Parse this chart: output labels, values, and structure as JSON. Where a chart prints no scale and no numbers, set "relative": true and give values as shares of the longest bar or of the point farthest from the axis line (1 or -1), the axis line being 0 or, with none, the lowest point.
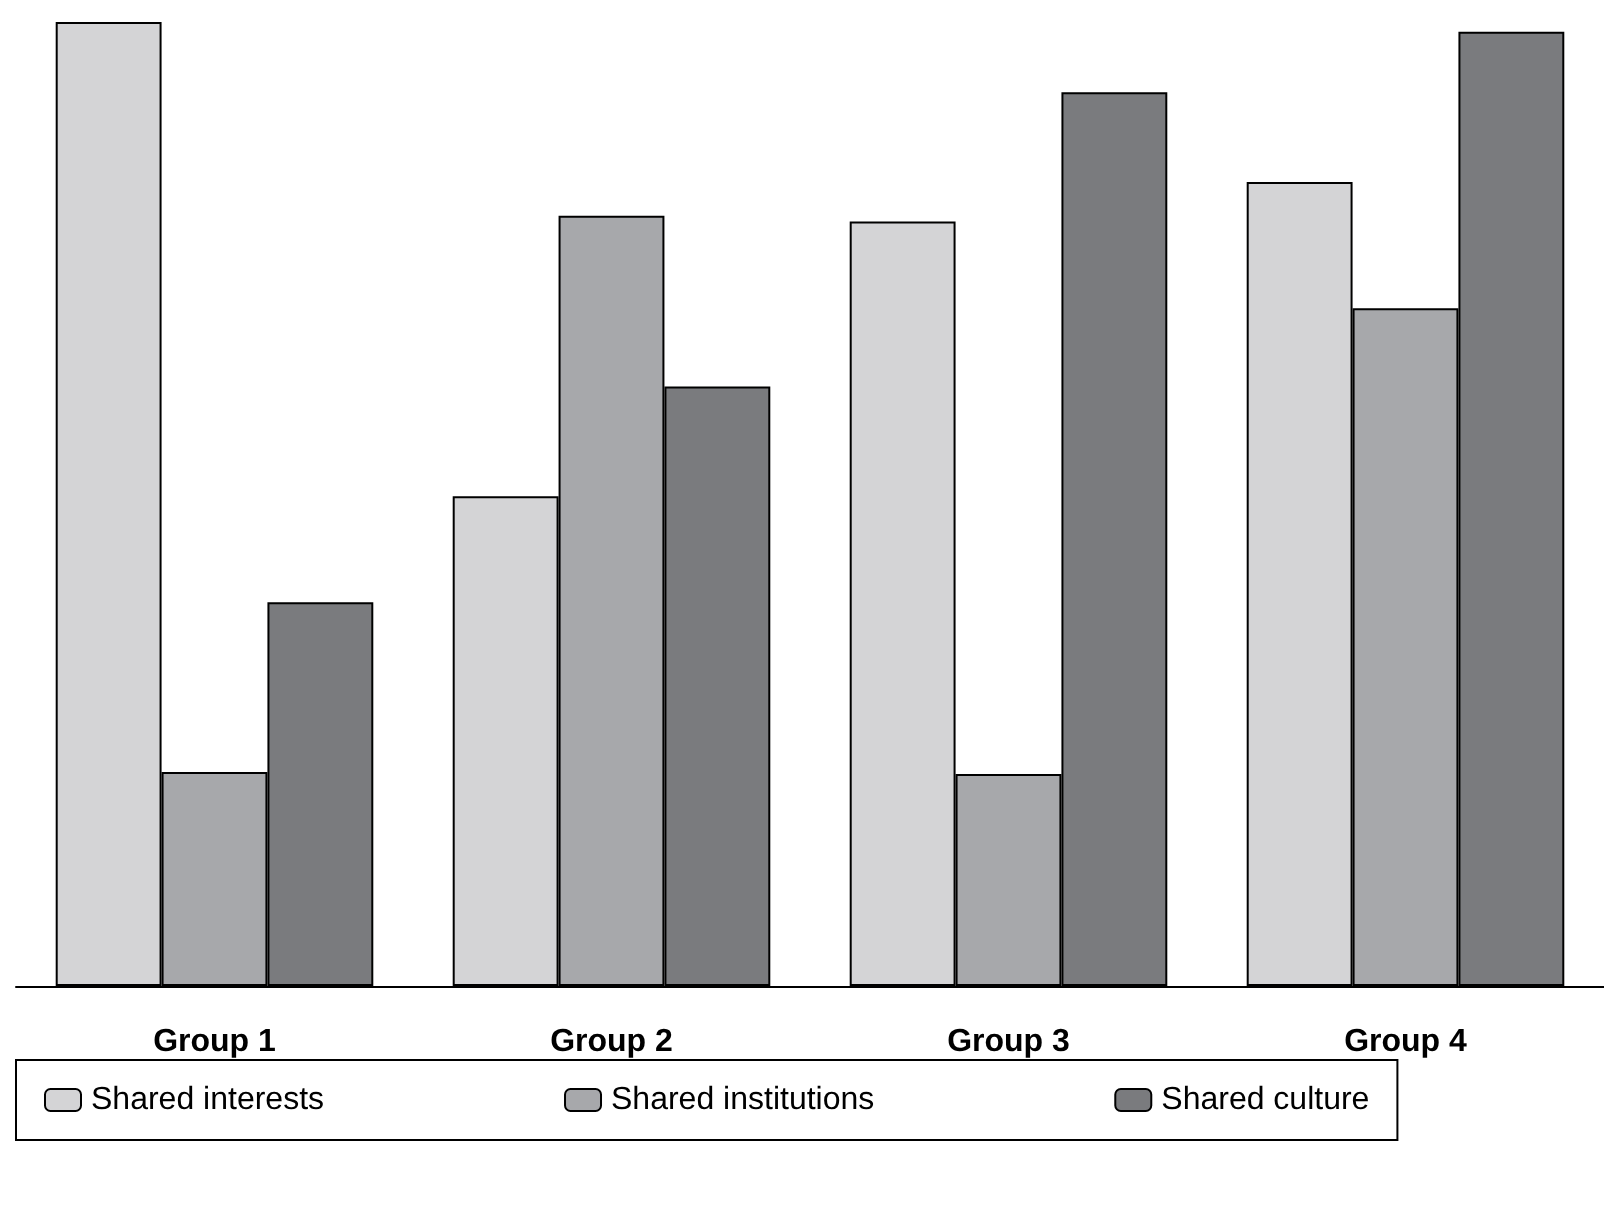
{
  "chart_data": {
    "type": "bar",
    "relative": true,
    "categories": [
      "Group 1",
      "Group 2",
      "Group 3",
      "Group 4"
    ],
    "series": [
      {
        "name": "Shared interests",
        "color": "#d4d4d6",
        "values": [
          1,
          0.508,
          0.793,
          0.834
        ]
      },
      {
        "name": "Shared institutions",
        "color": "#a7a8ab",
        "values": [
          0.222,
          0.799,
          0.22,
          0.703
        ]
      },
      {
        "name": "Shared culture",
        "color": "#7a7b7e",
        "values": [
          0.398,
          0.622,
          0.927,
          0.99
        ]
      }
    ],
    "legend": "bottom"
  }
}
